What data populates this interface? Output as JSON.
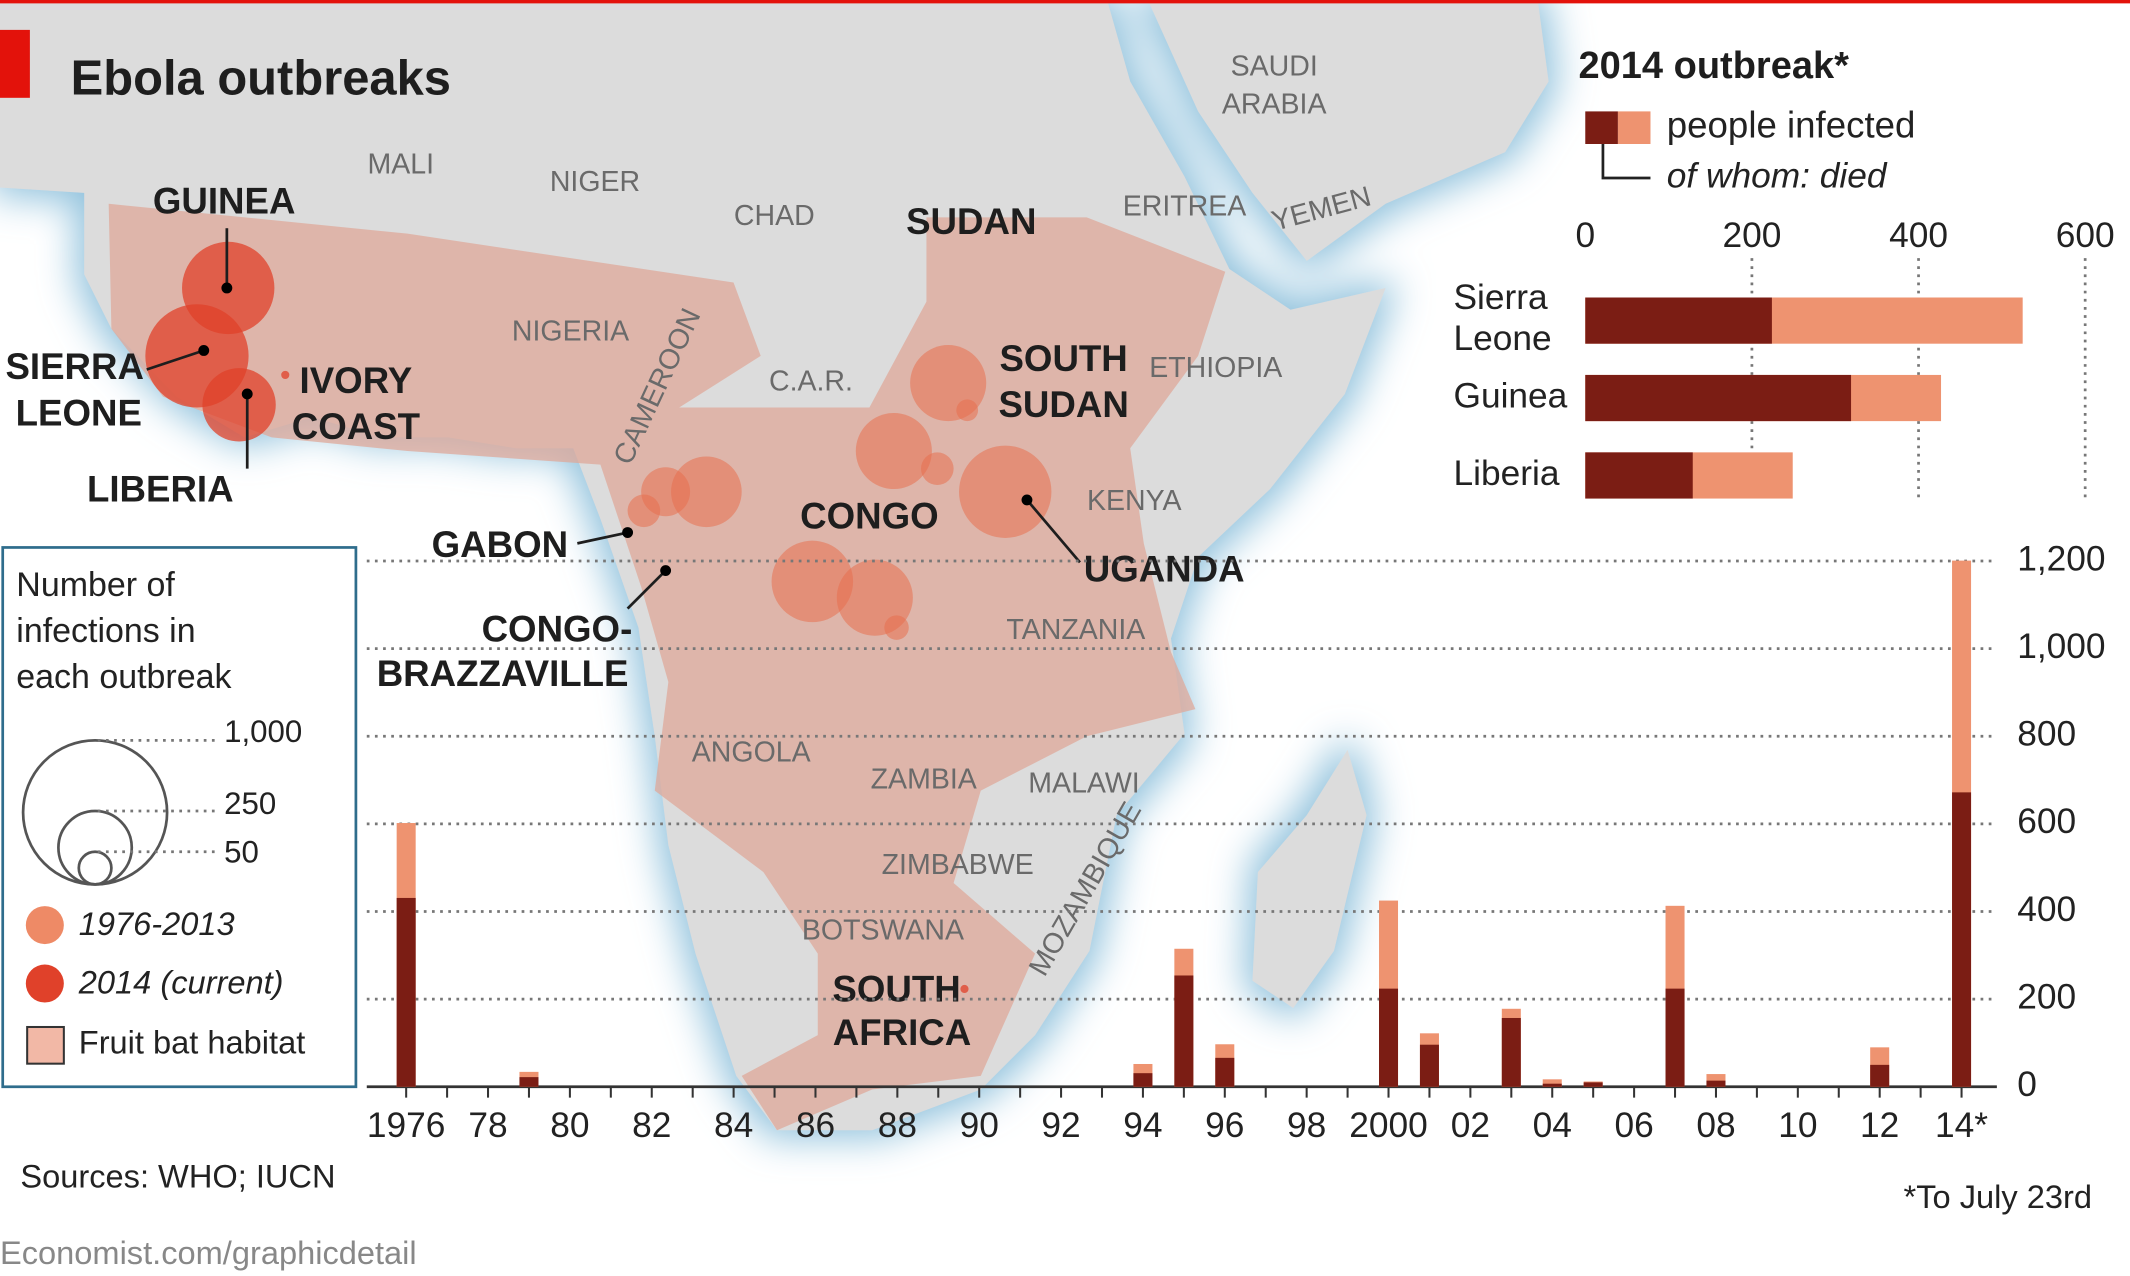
{
  "header": {
    "title": "Ebola outbreaks"
  },
  "map": {
    "labels": [
      "MALI",
      "NIGER",
      "CHAD",
      [
        "SAUDI",
        "ARABIA"
      ],
      "ERITREA",
      "YEMEN",
      "NIGERIA",
      "CAMEROON",
      "C.A.R.",
      "ETHIOPIA",
      "KENYA",
      "TANZANIA",
      "ANGOLA",
      "ZAMBIA",
      "MALAWI",
      "ZIMBABWE",
      "BOTSWANA",
      "MOZAMBIQUE",
      "GUINEA",
      [
        "SIERRA",
        "LEONE"
      ],
      [
        "IVORY",
        "COAST"
      ],
      "LIBERIA",
      "SUDAN",
      [
        "SOUTH",
        "SUDAN"
      ],
      "GABON",
      "CONGO",
      "UGANDA",
      [
        "CONGO-",
        "BRAZZAVILLE"
      ],
      [
        "SOUTH",
        "AFRICA"
      ]
    ]
  },
  "legend": {
    "title": [
      "Number of",
      "infections in",
      "each outbreak"
    ],
    "sizes": [
      "1,000",
      "250",
      "50"
    ],
    "items": [
      "1976-2013",
      "2014 (current)",
      "Fruit bat habitat"
    ]
  },
  "chart_data": [
    {
      "type": "hbar",
      "title": "2014 outbreak*",
      "categories": [
        "Sierra Leone",
        "Guinea",
        "Liberia"
      ],
      "series": [
        {
          "name": "people infected",
          "color": "#ee9370",
          "values": [
            525,
            427,
            249
          ]
        },
        {
          "name": "of whom: died",
          "color": "#7b1d14",
          "values": [
            224,
            319,
            129
          ]
        }
      ],
      "xlim": [
        0,
        600
      ],
      "xticks": [
        0,
        200,
        400,
        600
      ],
      "grid": true
    },
    {
      "type": "bar",
      "categories": [
        "1976",
        null,
        "78",
        null,
        "80",
        null,
        "82",
        null,
        "84",
        null,
        "86",
        null,
        "88",
        null,
        "90",
        null,
        "92",
        null,
        "94",
        null,
        "96",
        null,
        "98",
        null,
        "2000",
        null,
        "02",
        null,
        "04",
        null,
        "06",
        null,
        "08",
        null,
        "10",
        null,
        "12",
        null,
        "14*"
      ],
      "series": [
        {
          "color": "#ee9370",
          "values": [
            602,
            null,
            null,
            34,
            null,
            null,
            null,
            null,
            null,
            null,
            null,
            null,
            null,
            null,
            null,
            null,
            null,
            null,
            52,
            315,
            97,
            null,
            null,
            null,
            425,
            122,
            null,
            178,
            17,
            12,
            null,
            413,
            29,
            null,
            null,
            null,
            90,
            null,
            1201
          ]
        },
        {
          "color": "#7b1d14",
          "values": [
            431,
            null,
            null,
            22,
            null,
            null,
            null,
            null,
            null,
            null,
            null,
            null,
            null,
            null,
            null,
            null,
            null,
            null,
            31,
            254,
            66,
            null,
            null,
            null,
            224,
            96,
            null,
            157,
            7,
            10,
            null,
            224,
            14,
            null,
            null,
            null,
            50,
            null,
            672
          ]
        }
      ],
      "ylim": [
        0,
        1200
      ],
      "yticks": [
        0,
        200,
        400,
        600,
        800,
        {
          "value": 1000,
          "label": "1,000"
        },
        {
          "value": 1200,
          "label": "1,200"
        }
      ],
      "grid": true,
      "footnote": "*To July 23rd"
    }
  ],
  "footer": {
    "sources": "Sources: WHO; IUCN",
    "credit": "Economist.com/graphicdetail"
  }
}
